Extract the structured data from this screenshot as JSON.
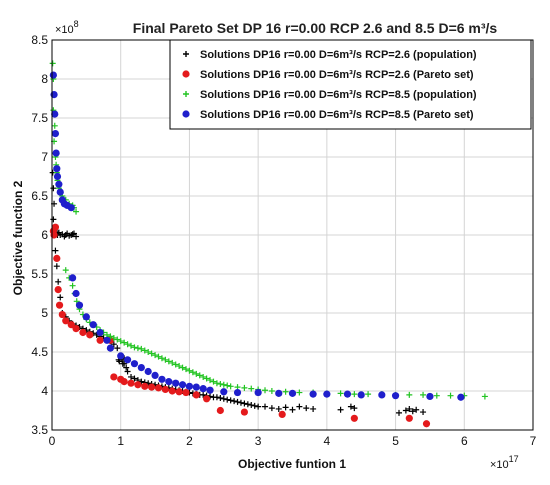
{
  "chart_data": {
    "type": "scatter",
    "title": "Final Pareto Set DP 16 r=0.00 RCP 2.6 and 8.5 D=6 m³/s",
    "xlabel": "Objective funtion 1",
    "ylabel": "Objective function 2",
    "x_multiplier": "×10",
    "x_multiplier_exp": "17",
    "y_multiplier": "×10",
    "y_multiplier_exp": "8",
    "xlim": [
      0,
      7
    ],
    "ylim": [
      3.5,
      8.5
    ],
    "x_ticks": [
      "0",
      "1",
      "2",
      "3",
      "4",
      "5",
      "6",
      "7"
    ],
    "y_ticks": [
      "3.5",
      "4",
      "4.5",
      "5",
      "5.5",
      "6",
      "6.5",
      "7",
      "7.5",
      "8",
      "8.5"
    ],
    "grid": true,
    "legend_position": "top-right",
    "series": [
      {
        "name": "Solutions DP16 r=0.00 D=6m³/s RCP=2.6 (population)",
        "marker": "plus",
        "color": "#000000",
        "x": [
          0.01,
          0.02,
          0.03,
          0.02,
          0.04,
          0.03,
          0.05,
          0.06,
          0.08,
          0.1,
          0.12,
          0.15,
          0.18,
          0.2,
          0.22,
          0.25,
          0.28,
          0.3,
          0.32,
          0.35,
          0.05,
          0.07,
          0.09,
          0.12,
          0.15,
          0.2,
          0.25,
          0.3,
          0.35,
          0.4,
          0.45,
          0.5,
          0.55,
          0.6,
          0.65,
          0.7,
          0.75,
          0.8,
          0.85,
          0.9,
          0.95,
          1.0,
          1.02,
          1.05,
          1.08,
          1.1,
          1.15,
          1.2,
          1.25,
          1.3,
          1.35,
          1.4,
          1.45,
          1.5,
          1.55,
          1.6,
          1.65,
          1.7,
          1.75,
          1.8,
          1.85,
          1.9,
          1.95,
          2.0,
          2.05,
          2.1,
          2.15,
          2.2,
          2.25,
          2.3,
          2.35,
          2.4,
          2.45,
          2.5,
          2.55,
          2.6,
          2.65,
          2.7,
          2.75,
          2.8,
          2.85,
          2.9,
          2.95,
          3.0,
          3.1,
          3.2,
          3.3,
          3.4,
          3.5,
          3.6,
          3.7,
          3.8,
          4.2,
          4.35,
          4.4,
          5.05,
          5.15,
          5.2,
          5.25,
          5.3,
          5.4,
          0.97,
          1.0,
          1.05,
          0.98,
          1.03
        ],
        "y": [
          6.8,
          6.6,
          6.4,
          6.2,
          6.1,
          6.0,
          6.05,
          6.02,
          6.0,
          6.03,
          6.0,
          6.01,
          5.98,
          6.0,
          6.02,
          5.99,
          6.0,
          6.01,
          6.02,
          5.98,
          5.8,
          5.6,
          5.4,
          5.2,
          5.0,
          4.95,
          4.9,
          4.86,
          4.84,
          4.82,
          4.8,
          4.78,
          4.76,
          4.74,
          4.72,
          4.7,
          4.68,
          4.66,
          4.64,
          4.6,
          4.55,
          4.45,
          4.4,
          4.35,
          4.3,
          4.25,
          4.18,
          4.16,
          4.14,
          4.12,
          4.11,
          4.1,
          4.09,
          4.08,
          4.07,
          4.06,
          4.05,
          4.04,
          4.03,
          4.02,
          4.01,
          4.0,
          3.99,
          3.98,
          3.97,
          3.96,
          3.95,
          3.95,
          3.94,
          3.93,
          3.92,
          3.92,
          3.91,
          3.9,
          3.89,
          3.88,
          3.87,
          3.86,
          3.85,
          3.84,
          3.83,
          3.82,
          3.81,
          3.8,
          3.8,
          3.78,
          3.77,
          3.79,
          3.76,
          3.8,
          3.78,
          3.77,
          3.76,
          3.8,
          3.78,
          3.72,
          3.75,
          3.77,
          3.74,
          3.76,
          3.73,
          4.4,
          4.45,
          4.42,
          4.38,
          4.35
        ]
      },
      {
        "name": "Solutions DP16 r=0.00 D=6m³/s RCP=2.6 (Pareto set)",
        "marker": "dot",
        "color": "#e41a1c",
        "x": [
          0.02,
          0.03,
          0.05,
          0.07,
          0.09,
          0.11,
          0.15,
          0.2,
          0.28,
          0.35,
          0.45,
          0.55,
          0.7,
          0.85,
          0.9,
          1.0,
          1.05,
          1.15,
          1.25,
          1.35,
          1.45,
          1.55,
          1.65,
          1.75,
          1.85,
          1.95,
          2.1,
          2.25,
          2.45,
          2.8,
          3.35,
          4.4,
          5.2,
          5.45
        ],
        "y": [
          6.05,
          6.0,
          6.1,
          5.7,
          5.3,
          5.1,
          4.98,
          4.9,
          4.85,
          4.8,
          4.75,
          4.72,
          4.65,
          4.65,
          4.18,
          4.15,
          4.12,
          4.1,
          4.08,
          4.06,
          4.05,
          4.04,
          4.02,
          4.0,
          3.99,
          3.98,
          3.95,
          3.9,
          3.75,
          3.73,
          3.7,
          3.65,
          3.65,
          3.58
        ]
      },
      {
        "name": "Solutions DP16 r=0.00 D=6m³/s RCP=8.5 (population)",
        "marker": "plus",
        "color": "#22c422",
        "x": [
          0.01,
          0.02,
          0.03,
          0.02,
          0.04,
          0.03,
          0.05,
          0.06,
          0.07,
          0.08,
          0.1,
          0.12,
          0.15,
          0.2,
          0.25,
          0.3,
          0.32,
          0.35,
          0.2,
          0.25,
          0.3,
          0.33,
          0.36,
          0.4,
          0.45,
          0.5,
          0.55,
          0.6,
          0.65,
          0.7,
          0.75,
          0.8,
          0.85,
          0.9,
          0.95,
          1.0,
          1.05,
          1.1,
          1.15,
          1.2,
          1.25,
          1.3,
          1.35,
          1.4,
          1.45,
          1.5,
          1.55,
          1.6,
          1.65,
          1.7,
          1.75,
          1.8,
          1.85,
          1.9,
          1.95,
          2.0,
          2.05,
          2.1,
          2.15,
          2.2,
          2.25,
          2.3,
          2.35,
          2.4,
          2.45,
          2.5,
          2.55,
          2.6,
          2.7,
          2.8,
          2.9,
          3.0,
          3.1,
          3.2,
          3.4,
          3.6,
          3.8,
          4.0,
          4.2,
          4.4,
          4.6,
          4.8,
          5.0,
          5.2,
          5.4,
          5.6,
          5.8,
          6.0,
          6.3
        ],
        "y": [
          8.2,
          8.0,
          7.8,
          7.6,
          7.4,
          7.2,
          7.0,
          6.9,
          6.8,
          6.7,
          6.6,
          6.55,
          6.5,
          6.45,
          6.4,
          6.38,
          6.35,
          6.3,
          5.55,
          5.45,
          5.35,
          5.25,
          5.15,
          5.05,
          4.98,
          4.92,
          4.88,
          4.85,
          4.82,
          4.78,
          4.75,
          4.72,
          4.7,
          4.68,
          4.66,
          4.64,
          4.62,
          4.6,
          4.58,
          4.56,
          4.55,
          4.54,
          4.52,
          4.5,
          4.48,
          4.46,
          4.44,
          4.42,
          4.4,
          4.38,
          4.36,
          4.34,
          4.32,
          4.3,
          4.28,
          4.26,
          4.24,
          4.22,
          4.2,
          4.18,
          4.16,
          4.14,
          4.12,
          4.1,
          4.09,
          4.08,
          4.07,
          4.06,
          4.05,
          4.04,
          4.03,
          4.02,
          4.01,
          4.0,
          3.99,
          3.98,
          3.98,
          3.97,
          3.97,
          3.96,
          3.96,
          3.96,
          3.95,
          3.95,
          3.95,
          3.94,
          3.94,
          3.94,
          3.93
        ]
      },
      {
        "name": "Solutions DP16 r=0.00 D=6m³/s RCP=8.5 (Pareto set)",
        "marker": "dot",
        "color": "#1f1fcc",
        "x": [
          0.02,
          0.03,
          0.04,
          0.05,
          0.06,
          0.07,
          0.08,
          0.1,
          0.12,
          0.15,
          0.18,
          0.22,
          0.28,
          0.3,
          0.35,
          0.4,
          0.5,
          0.6,
          0.7,
          0.8,
          0.85,
          1.0,
          1.1,
          1.2,
          1.3,
          1.4,
          1.5,
          1.6,
          1.7,
          1.8,
          1.9,
          2.0,
          2.1,
          2.2,
          2.3,
          2.5,
          2.7,
          3.0,
          3.3,
          3.5,
          3.8,
          4.0,
          4.3,
          4.5,
          4.8,
          5.0,
          5.5,
          5.95
        ],
        "y": [
          8.05,
          7.8,
          7.55,
          7.3,
          7.05,
          6.85,
          6.75,
          6.65,
          6.55,
          6.45,
          6.4,
          6.38,
          6.35,
          5.45,
          5.25,
          5.1,
          4.95,
          4.85,
          4.75,
          4.65,
          4.55,
          4.45,
          4.4,
          4.35,
          4.3,
          4.25,
          4.2,
          4.15,
          4.12,
          4.1,
          4.08,
          4.06,
          4.05,
          4.03,
          4.01,
          3.99,
          3.98,
          3.98,
          3.97,
          3.97,
          3.96,
          3.96,
          3.96,
          3.95,
          3.95,
          3.94,
          3.93,
          3.92
        ]
      }
    ]
  }
}
